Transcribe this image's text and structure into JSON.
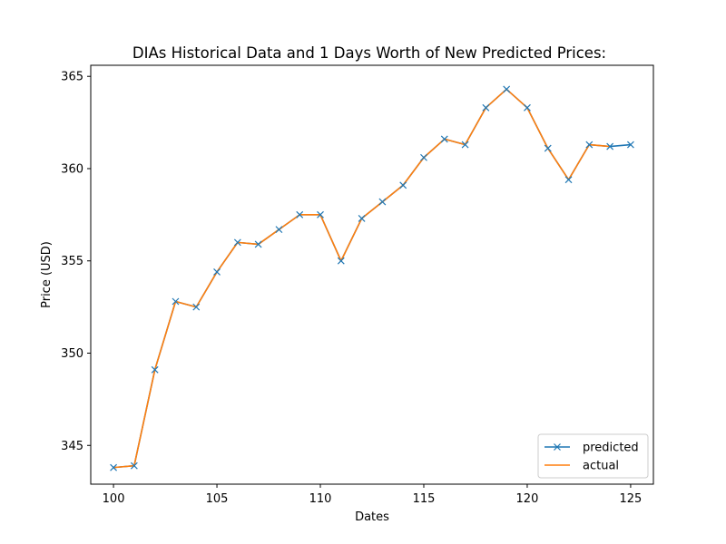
{
  "chart_data": {
    "type": "line",
    "title": "DIAs Historical Data and 1 Days Worth of New Predicted Prices:",
    "xlabel": "Dates",
    "ylabel": "Price (USD)",
    "xlim": [
      98.9,
      126.1
    ],
    "ylim": [
      342.9,
      365.6
    ],
    "xticks": [
      100,
      105,
      110,
      115,
      120,
      125
    ],
    "yticks": [
      345,
      350,
      355,
      360,
      365
    ],
    "grid": false,
    "legend_position": "bottom-right",
    "series": [
      {
        "name": "predicted",
        "color": "#1f77b4",
        "marker": "x",
        "x": [
          100,
          101,
          102,
          103,
          104,
          105,
          106,
          107,
          108,
          109,
          110,
          111,
          112,
          113,
          114,
          115,
          116,
          117,
          118,
          119,
          120,
          121,
          122,
          123,
          124,
          125
        ],
        "values": [
          343.8,
          343.9,
          349.1,
          352.8,
          352.5,
          354.4,
          356.0,
          355.9,
          356.7,
          357.5,
          357.5,
          355.0,
          357.3,
          358.2,
          359.1,
          360.6,
          361.6,
          361.3,
          363.3,
          364.3,
          363.3,
          361.1,
          359.4,
          361.3,
          361.2,
          361.3
        ]
      },
      {
        "name": "actual",
        "color": "#ff7f0e",
        "marker": "none",
        "x": [
          100,
          101,
          102,
          103,
          104,
          105,
          106,
          107,
          108,
          109,
          110,
          111,
          112,
          113,
          114,
          115,
          116,
          117,
          118,
          119,
          120,
          121,
          122,
          123,
          124
        ],
        "values": [
          343.8,
          343.9,
          349.1,
          352.8,
          352.5,
          354.4,
          356.0,
          355.9,
          356.7,
          357.5,
          357.5,
          355.0,
          357.3,
          358.2,
          359.1,
          360.6,
          361.6,
          361.3,
          363.3,
          364.3,
          363.3,
          361.1,
          359.4,
          361.3,
          361.2
        ]
      }
    ]
  }
}
